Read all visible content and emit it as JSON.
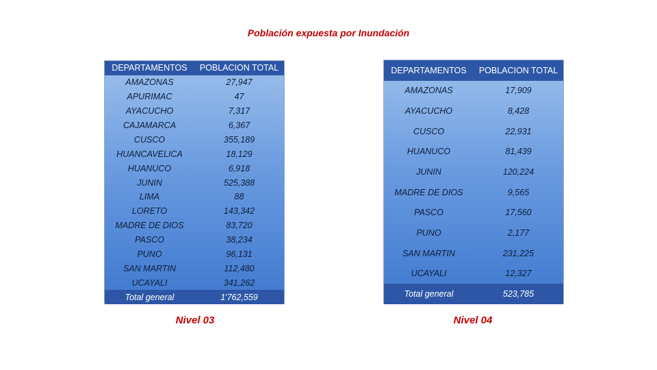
{
  "title": "Población expuesta por Inundación",
  "nivel03": {
    "caption": "Nivel 03",
    "headers": [
      "DEPARTAMENTOS",
      "POBLACION TOTAL"
    ],
    "rows": [
      [
        "AMAZONAS",
        "27,947"
      ],
      [
        "APURIMAC",
        "47"
      ],
      [
        "AYACUCHO",
        "7,317"
      ],
      [
        "CAJAMARCA",
        "6,367"
      ],
      [
        "CUSCO",
        "355,189"
      ],
      [
        "HUANCAVELICA",
        "18,129"
      ],
      [
        "HUANUCO",
        "6,918"
      ],
      [
        "JUNIN",
        "525,388"
      ],
      [
        "LIMA",
        "88"
      ],
      [
        "LORETO",
        "143,342"
      ],
      [
        "MADRE DE DIOS",
        "83,720"
      ],
      [
        "PASCO",
        "38,234"
      ],
      [
        "PUNO",
        "96,131"
      ],
      [
        "SAN MARTIN",
        "112,480"
      ],
      [
        "UCAYALI",
        "341,262"
      ]
    ],
    "total": [
      "Total general",
      "1'762,559"
    ]
  },
  "nivel04": {
    "caption": "Nivel 04",
    "headers": [
      "DEPARTAMENTOS",
      "POBLACION TOTAL"
    ],
    "rows": [
      [
        "AMAZONAS",
        "17,909"
      ],
      [
        "AYACUCHO",
        "8,428"
      ],
      [
        "CUSCO",
        "22,931"
      ],
      [
        "HUANUCO",
        "81,439"
      ],
      [
        "JUNIN",
        "120,224"
      ],
      [
        "MADRE DE DIOS",
        "9,565"
      ],
      [
        "PASCO",
        "17,560"
      ],
      [
        "PUNO",
        "2,177"
      ],
      [
        "SAN MARTIN",
        "231,225"
      ],
      [
        "UCAYALI",
        "12,327"
      ]
    ],
    "total": [
      "Total general",
      "523,785"
    ]
  },
  "colors": {
    "title": "#c00000",
    "header_bg": "#2d57a6",
    "body_gradient_top": "#9cc0ec",
    "body_gradient_bottom": "#3f78cf"
  }
}
